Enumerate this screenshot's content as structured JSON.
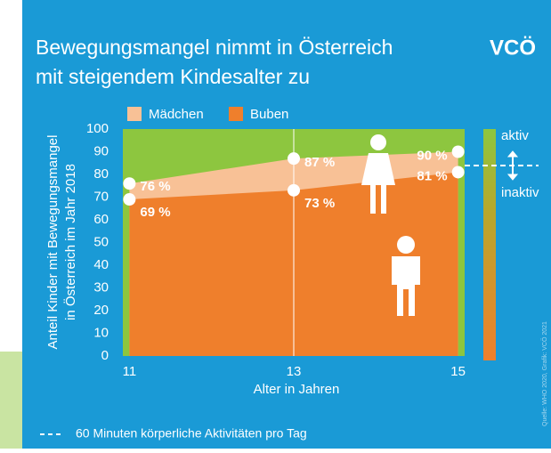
{
  "chart_data": {
    "type": "area",
    "title": [
      "Bewegungsmangel nimmt in Österreich",
      "mit steigendem Kindesalter zu"
    ],
    "logo": "VCÖ",
    "ylabel": [
      "Anteil Kinder mit Bewegungsmangel",
      "in Österreich im Jahr 2018"
    ],
    "xlabel": "Alter in Jahren",
    "x": [
      11,
      13,
      15
    ],
    "xlim": [
      10.92,
      15.08
    ],
    "xticks": [
      11,
      13,
      15
    ],
    "ylim": [
      0,
      100
    ],
    "yticks": [
      0,
      10,
      20,
      30,
      40,
      50,
      60,
      70,
      80,
      90,
      100
    ],
    "grid": false,
    "background_color": "#8dc63f",
    "series": [
      {
        "name": "Mädchen",
        "color": "#f8c196",
        "values": [
          76,
          87,
          90
        ],
        "value_labels": [
          "76 %",
          "87 %",
          "90 %"
        ]
      },
      {
        "name": "Buben",
        "color": "#ef7f2c",
        "values": [
          69,
          73,
          81
        ],
        "value_labels": [
          "69 %",
          "73 %",
          "81 %"
        ]
      }
    ],
    "scale_labels": [
      "aktiv",
      "inaktiv"
    ],
    "note": "60 Minuten körperliche Aktivitäten pro Tag",
    "source": "Quelle: WHO 2020, Grafik: VCÖ 2021"
  }
}
